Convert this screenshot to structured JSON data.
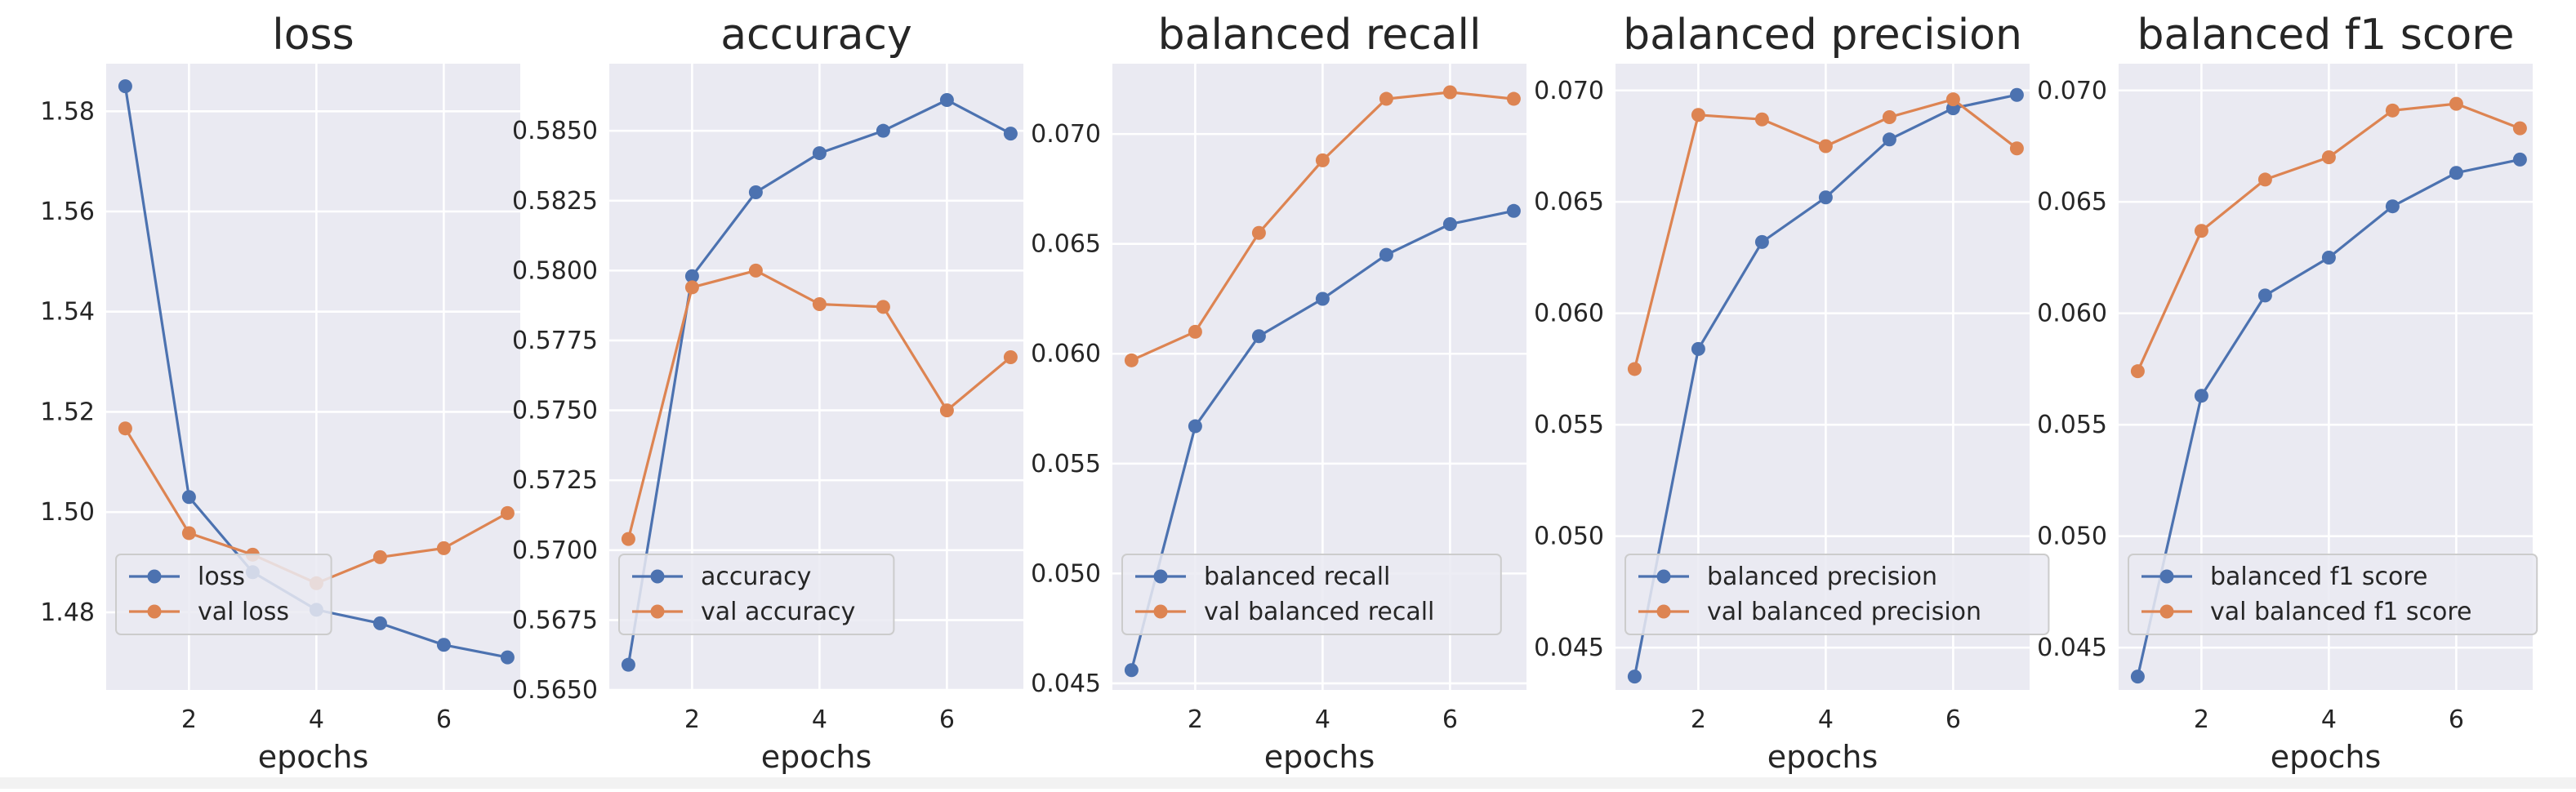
{
  "chart_data": [
    {
      "type": "line",
      "title": "loss",
      "xlabel": "epochs",
      "ylabel": "",
      "x": [
        1,
        2,
        3,
        4,
        5,
        6,
        7
      ],
      "xlim": [
        0.7,
        7.2
      ],
      "ylim": [
        1.4645,
        1.5895
      ],
      "xticks": [
        2,
        4,
        6
      ],
      "xtick_labels": [
        "2",
        "4",
        "6"
      ],
      "yticks": [
        1.48,
        1.5,
        1.52,
        1.54,
        1.56,
        1.58
      ],
      "ytick_labels": [
        "1.48",
        "1.50",
        "1.52",
        "1.54",
        "1.56",
        "1.58"
      ],
      "grid": true,
      "legend_position": "lower left",
      "series": [
        {
          "name": "loss",
          "color": "#4c72b0",
          "values": [
            1.585,
            1.503,
            1.488,
            1.4805,
            1.4778,
            1.4735,
            1.471
          ]
        },
        {
          "name": "val loss",
          "color": "#dd8452",
          "values": [
            1.5167,
            1.4958,
            1.4915,
            1.4858,
            1.491,
            1.4928,
            1.4998
          ]
        }
      ]
    },
    {
      "type": "line",
      "title": "accuracy",
      "xlabel": "epochs",
      "ylabel": "",
      "x": [
        1,
        2,
        3,
        4,
        5,
        6,
        7
      ],
      "xlim": [
        0.7,
        7.2
      ],
      "ylim": [
        0.565,
        0.5874
      ],
      "xticks": [
        2,
        4,
        6
      ],
      "xtick_labels": [
        "2",
        "4",
        "6"
      ],
      "yticks": [
        0.565,
        0.5675,
        0.57,
        0.5725,
        0.575,
        0.5775,
        0.58,
        0.5825,
        0.585
      ],
      "ytick_labels": [
        "0.5650",
        "0.5675",
        "0.5700",
        "0.5725",
        "0.5750",
        "0.5775",
        "0.5800",
        "0.5825",
        "0.5850"
      ],
      "grid": true,
      "legend_position": "lower left",
      "series": [
        {
          "name": "accuracy",
          "color": "#4c72b0",
          "values": [
            0.5659,
            0.5798,
            0.5828,
            0.5842,
            0.585,
            0.5861,
            0.5849
          ]
        },
        {
          "name": "val accuracy",
          "color": "#dd8452",
          "values": [
            0.5704,
            0.5794,
            0.58,
            0.5788,
            0.5787,
            0.575,
            0.5769
          ]
        }
      ]
    },
    {
      "type": "line",
      "title": "balanced recall",
      "xlabel": "epochs",
      "ylabel": "",
      "x": [
        1,
        2,
        3,
        4,
        5,
        6,
        7
      ],
      "xlim": [
        0.7,
        7.2
      ],
      "ylim": [
        0.0447,
        0.0732
      ],
      "xticks": [
        2,
        4,
        6
      ],
      "xtick_labels": [
        "2",
        "4",
        "6"
      ],
      "yticks": [
        0.045,
        0.05,
        0.055,
        0.06,
        0.065,
        0.07
      ],
      "ytick_labels": [
        "0.045",
        "0.050",
        "0.055",
        "0.060",
        "0.065",
        "0.070"
      ],
      "grid": true,
      "legend_position": "lower left",
      "series": [
        {
          "name": "balanced recall",
          "color": "#4c72b0",
          "values": [
            0.0456,
            0.0567,
            0.0608,
            0.0625,
            0.0645,
            0.0659,
            0.0665
          ]
        },
        {
          "name": "val balanced recall",
          "color": "#dd8452",
          "values": [
            0.0597,
            0.061,
            0.0655,
            0.0688,
            0.0716,
            0.0719,
            0.0716
          ]
        }
      ]
    },
    {
      "type": "line",
      "title": "balanced precision",
      "xlabel": "epochs",
      "ylabel": "",
      "x": [
        1,
        2,
        3,
        4,
        5,
        6,
        7
      ],
      "xlim": [
        0.7,
        7.2
      ],
      "ylim": [
        0.0431,
        0.0712
      ],
      "xticks": [
        2,
        4,
        6
      ],
      "xtick_labels": [
        "2",
        "4",
        "6"
      ],
      "yticks": [
        0.045,
        0.05,
        0.055,
        0.06,
        0.065,
        0.07
      ],
      "ytick_labels": [
        "0.045",
        "0.050",
        "0.055",
        "0.060",
        "0.065",
        "0.070"
      ],
      "grid": true,
      "legend_position": "lower left",
      "series": [
        {
          "name": "balanced precision",
          "color": "#4c72b0",
          "values": [
            0.0437,
            0.0584,
            0.0632,
            0.0652,
            0.0678,
            0.0692,
            0.0698
          ]
        },
        {
          "name": "val balanced precision",
          "color": "#dd8452",
          "values": [
            0.0575,
            0.0689,
            0.0687,
            0.0675,
            0.0688,
            0.0696,
            0.0674
          ]
        }
      ]
    },
    {
      "type": "line",
      "title": "balanced f1 score",
      "xlabel": "epochs",
      "ylabel": "",
      "x": [
        1,
        2,
        3,
        4,
        5,
        6,
        7
      ],
      "xlim": [
        0.7,
        7.2
      ],
      "ylim": [
        0.0431,
        0.0712
      ],
      "xticks": [
        2,
        4,
        6
      ],
      "xtick_labels": [
        "2",
        "4",
        "6"
      ],
      "yticks": [
        0.045,
        0.05,
        0.055,
        0.06,
        0.065,
        0.07
      ],
      "ytick_labels": [
        "0.045",
        "0.050",
        "0.055",
        "0.060",
        "0.065",
        "0.070"
      ],
      "grid": true,
      "legend_position": "lower left",
      "series": [
        {
          "name": "balanced f1 score",
          "color": "#4c72b0",
          "values": [
            0.0437,
            0.0563,
            0.0608,
            0.0625,
            0.0648,
            0.0663,
            0.0669
          ]
        },
        {
          "name": "val balanced f1 score",
          "color": "#dd8452",
          "values": [
            0.0574,
            0.0637,
            0.066,
            0.067,
            0.0691,
            0.0694,
            0.0683
          ]
        }
      ]
    }
  ],
  "style": {
    "plot_background": "#eaeaf2",
    "grid_color": "#ffffff",
    "text_color": "#262626",
    "legend_background": "#eaeaf2",
    "legend_border": "#cccccc"
  }
}
